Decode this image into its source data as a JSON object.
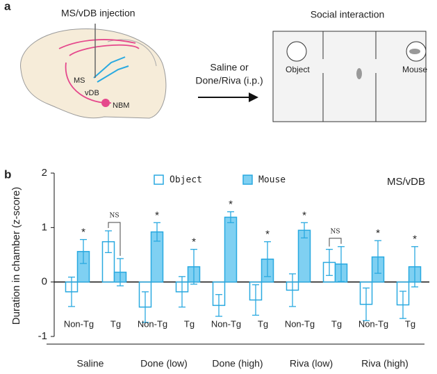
{
  "panel_a": {
    "label": "a",
    "injection_title": "MS/vDB injection",
    "regions": [
      "MS",
      "vDB",
      "NBM"
    ],
    "treatment": [
      "Saline or",
      "Done/Riva (i.p.)"
    ],
    "test_title": "Social interaction",
    "arena_labels": [
      "Object",
      "Mouse"
    ]
  },
  "panel_b_label": "b",
  "chart_data": {
    "type": "bar",
    "label": "MS/vDB",
    "ylabel": "Duration in chamber (z-score)",
    "categories": [
      "Non-Tg",
      "Tg",
      "Non-Tg",
      "Tg",
      "Non-Tg",
      "Tg",
      "Non-Tg",
      "Tg",
      "Non-Tg",
      "Tg"
    ],
    "groups": [
      "Saline",
      "Done (low)",
      "Done (high)",
      "Riva (low)",
      "Riva (high)"
    ],
    "series": [
      {
        "name": "Object",
        "color": "#29a9e0",
        "fill": "none",
        "values": [
          -0.18,
          0.74,
          -0.46,
          -0.18,
          -0.43,
          -0.33,
          -0.15,
          0.36,
          -0.41,
          -0.42
        ],
        "errors": [
          0.27,
          0.2,
          0.28,
          0.28,
          0.2,
          0.28,
          0.3,
          0.24,
          0.3,
          0.25
        ]
      },
      {
        "name": "Mouse",
        "color": "#29a9e0",
        "fill": "#7fd0f2",
        "values": [
          0.56,
          0.18,
          0.92,
          0.28,
          1.19,
          0.42,
          0.95,
          0.33,
          0.46,
          0.28
        ],
        "errors": [
          0.22,
          0.25,
          0.17,
          0.32,
          0.1,
          0.32,
          0.14,
          0.32,
          0.3,
          0.37
        ]
      }
    ],
    "significance": [
      "*",
      "NS",
      "*",
      "*",
      "*",
      "*",
      "*",
      "NS",
      "*",
      "*"
    ],
    "ylim": [
      -1,
      2
    ],
    "yticks": [
      -1,
      0,
      1,
      2
    ]
  }
}
